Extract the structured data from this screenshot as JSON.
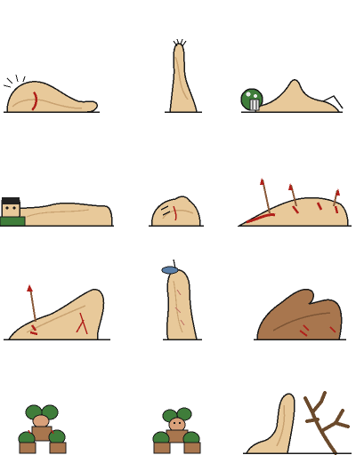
{
  "sprite_sheet": {
    "columns": 3,
    "rows": 4,
    "palette": {
      "outline": "#1a1a1a",
      "skin": "#e8c99a",
      "skin_shadow": "#c9a271",
      "blood": "#b0201a",
      "brown_skin": "#a8764e",
      "helmet_green": "#3f7d3a",
      "helmet_white": "#e9e9e9",
      "branch": "#6b4a2c",
      "hair_dark": "#222222",
      "cap_blue": "#5a7fa8",
      "spear": "#8a5a3a"
    },
    "sprites": [
      {
        "name": "lying-worm-creature",
        "icon": "worm-lying-icon"
      },
      {
        "name": "standing-cloaked-creature",
        "icon": "worm-standing-icon"
      },
      {
        "name": "creature-with-helmet",
        "icon": "worm-helmet-icon"
      },
      {
        "name": "man-buried-under-creature",
        "icon": "worm-crushing-icon"
      },
      {
        "name": "creature-curled-with-face",
        "icon": "worm-curled-icon"
      },
      {
        "name": "creature-speared-bleeding",
        "icon": "worm-speared-icon"
      },
      {
        "name": "creature-rearing-speared",
        "icon": "worm-rearing-icon"
      },
      {
        "name": "creature-upright-capped",
        "icon": "worm-upright-icon"
      },
      {
        "name": "brown-creature-wounded",
        "icon": "worm-brown-icon"
      },
      {
        "name": "goblin-group-a",
        "icon": "goblin-group-icon"
      },
      {
        "name": "goblin-group-b",
        "icon": "goblin-group-icon"
      },
      {
        "name": "creature-and-dead-tree",
        "icon": "worm-tree-icon"
      }
    ]
  }
}
